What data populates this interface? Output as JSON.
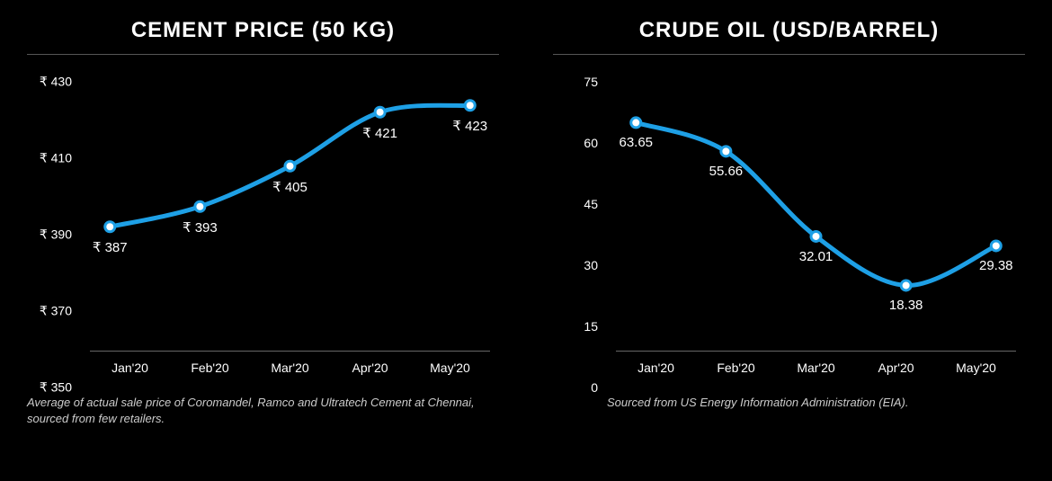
{
  "charts": [
    {
      "title": "CEMENT PRICE (50 KG)",
      "type": "line",
      "categories": [
        "Jan'20",
        "Feb'20",
        "Mar'20",
        "Apr'20",
        "May'20"
      ],
      "values": [
        387,
        393,
        405,
        421,
        423
      ],
      "value_labels": [
        "₹ 387",
        "₹ 393",
        "₹ 405",
        "₹ 421",
        "₹ 423"
      ],
      "label_position": "below",
      "y_ticks": [
        350,
        370,
        390,
        410,
        430
      ],
      "y_tick_labels": [
        "₹ 350",
        "₹ 370",
        "₹ 390",
        "₹ 410",
        "₹ 430"
      ],
      "ylim": [
        350,
        430
      ],
      "line_color": "#1ea0e6",
      "line_width": 5,
      "marker_fill": "#ffffff",
      "marker_stroke": "#1ea0e6",
      "marker_radius": 5.5,
      "marker_stroke_width": 3,
      "background_color": "#000000",
      "axis_color": "#666666",
      "text_color": "#ffffff",
      "label_fontsize": 15,
      "tick_fontsize": 14,
      "title_fontsize": 24,
      "footnote": "Average of actual sale price of Coromandel, Ramco and Ultratech Cement at Chennai, sourced from few retailers.",
      "curve": true
    },
    {
      "title": "CRUDE OIL (USD/BARREL)",
      "type": "line",
      "categories": [
        "Jan'20",
        "Feb'20",
        "Mar'20",
        "Apr'20",
        "May'20"
      ],
      "values": [
        63.65,
        55.66,
        32.01,
        18.38,
        29.38
      ],
      "value_labels": [
        "63.65",
        "55.66",
        "32.01",
        "18.38",
        "29.38"
      ],
      "label_position": "below",
      "y_ticks": [
        0,
        15,
        30,
        45,
        60,
        75
      ],
      "y_tick_labels": [
        "0",
        "15",
        "30",
        "45",
        "60",
        "75"
      ],
      "ylim": [
        0,
        75
      ],
      "line_color": "#1ea0e6",
      "line_width": 5,
      "marker_fill": "#ffffff",
      "marker_stroke": "#1ea0e6",
      "marker_radius": 5.5,
      "marker_stroke_width": 3,
      "background_color": "#000000",
      "axis_color": "#666666",
      "text_color": "#ffffff",
      "label_fontsize": 15,
      "tick_fontsize": 14,
      "title_fontsize": 24,
      "footnote": "Sourced from US Energy Information Administration (EIA).",
      "curve": true
    }
  ]
}
